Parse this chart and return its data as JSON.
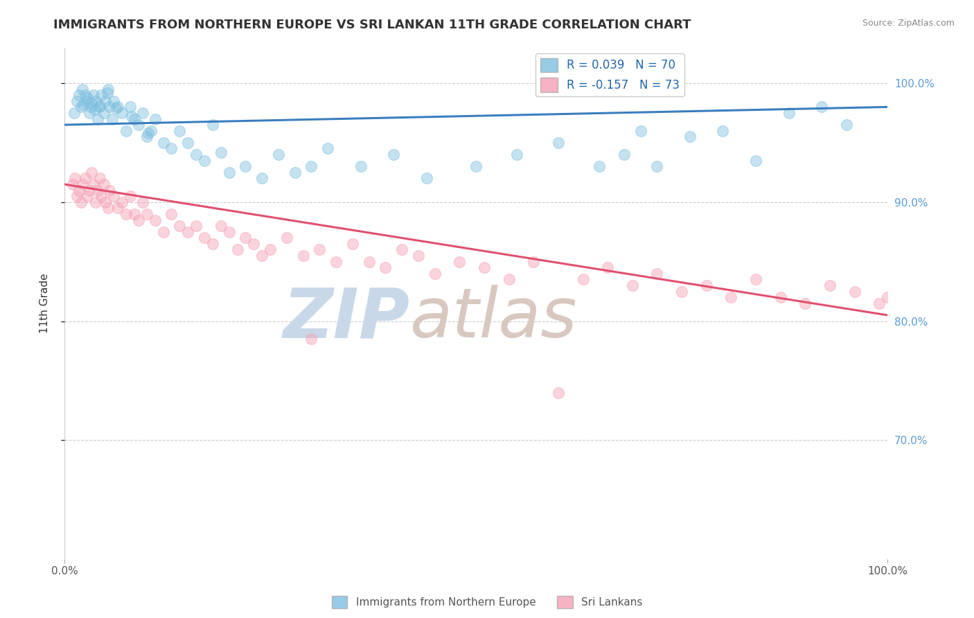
{
  "title": "IMMIGRANTS FROM NORTHERN EUROPE VS SRI LANKAN 11TH GRADE CORRELATION CHART",
  "source_text": "Source: ZipAtlas.com",
  "ylabel": "11th Grade",
  "xlim": [
    0.0,
    100.0
  ],
  "ylim": [
    60.0,
    103.0
  ],
  "legend_r1": "R = 0.039",
  "legend_n1": "N = 70",
  "legend_r2": "R = -0.157",
  "legend_n2": "N = 73",
  "blue_color": "#7fbfdf",
  "pink_color": "#f5a0b5",
  "blue_line_color": "#3a7ebf",
  "pink_line_color": "#e05070",
  "title_color": "#333333",
  "source_color": "#888888",
  "watermark_zip_color": "#c8d8e8",
  "watermark_atlas_color": "#d8c8c0",
  "ytick_vals": [
    70.0,
    80.0,
    90.0,
    100.0
  ],
  "ytick_labels": [
    "70.0%",
    "80.0%",
    "90.0%",
    "100.0%"
  ],
  "blue_scatter_x": [
    1.2,
    1.5,
    1.8,
    2.0,
    2.2,
    2.5,
    2.7,
    3.0,
    3.2,
    3.5,
    3.8,
    4.0,
    4.2,
    4.5,
    4.8,
    5.0,
    5.3,
    5.5,
    5.8,
    6.0,
    6.5,
    7.0,
    7.5,
    8.0,
    8.5,
    9.0,
    9.5,
    10.0,
    10.5,
    11.0,
    12.0,
    13.0,
    14.0,
    15.0,
    16.0,
    17.0,
    18.0,
    20.0,
    22.0,
    24.0,
    26.0,
    28.0,
    30.0,
    32.0,
    36.0,
    40.0,
    44.0,
    50.0,
    55.0,
    60.0,
    65.0,
    68.0,
    70.0,
    72.0,
    76.0,
    80.0,
    84.0,
    88.0,
    92.0,
    95.0,
    2.3,
    2.8,
    3.3,
    3.7,
    4.3,
    5.2,
    6.2,
    8.2,
    10.2,
    19.0
  ],
  "blue_scatter_y": [
    97.5,
    98.5,
    99.0,
    98.0,
    99.5,
    99.0,
    98.5,
    97.5,
    98.0,
    99.0,
    98.5,
    97.0,
    98.0,
    99.0,
    97.5,
    98.5,
    99.5,
    98.0,
    97.0,
    98.5,
    98.0,
    97.5,
    96.0,
    98.0,
    97.0,
    96.5,
    97.5,
    95.5,
    96.0,
    97.0,
    95.0,
    94.5,
    96.0,
    95.0,
    94.0,
    93.5,
    96.5,
    92.5,
    93.0,
    92.0,
    94.0,
    92.5,
    93.0,
    94.5,
    93.0,
    94.0,
    92.0,
    93.0,
    94.0,
    95.0,
    93.0,
    94.0,
    96.0,
    93.0,
    95.5,
    96.0,
    93.5,
    97.5,
    98.0,
    96.5,
    98.2,
    98.8,
    98.3,
    97.8,
    98.1,
    99.2,
    97.9,
    97.2,
    95.8,
    94.2
  ],
  "pink_scatter_x": [
    1.0,
    1.3,
    1.5,
    1.8,
    2.0,
    2.2,
    2.5,
    2.8,
    3.0,
    3.3,
    3.5,
    3.8,
    4.0,
    4.3,
    4.5,
    4.8,
    5.0,
    5.3,
    5.5,
    6.0,
    6.5,
    7.0,
    7.5,
    8.0,
    8.5,
    9.0,
    9.5,
    10.0,
    11.0,
    12.0,
    13.0,
    14.0,
    15.0,
    16.0,
    17.0,
    18.0,
    19.0,
    20.0,
    21.0,
    22.0,
    23.0,
    24.0,
    25.0,
    27.0,
    29.0,
    31.0,
    33.0,
    35.0,
    37.0,
    39.0,
    41.0,
    43.0,
    45.0,
    48.0,
    51.0,
    54.0,
    57.0,
    63.0,
    66.0,
    69.0,
    72.0,
    75.0,
    78.0,
    81.0,
    84.0,
    87.0,
    90.0,
    93.0,
    96.0,
    99.0,
    100.0,
    30.0,
    60.0
  ],
  "pink_scatter_y": [
    91.5,
    92.0,
    90.5,
    91.0,
    90.0,
    91.5,
    92.0,
    90.5,
    91.0,
    92.5,
    91.5,
    90.0,
    91.0,
    92.0,
    90.5,
    91.5,
    90.0,
    89.5,
    91.0,
    90.5,
    89.5,
    90.0,
    89.0,
    90.5,
    89.0,
    88.5,
    90.0,
    89.0,
    88.5,
    87.5,
    89.0,
    88.0,
    87.5,
    88.0,
    87.0,
    86.5,
    88.0,
    87.5,
    86.0,
    87.0,
    86.5,
    85.5,
    86.0,
    87.0,
    85.5,
    86.0,
    85.0,
    86.5,
    85.0,
    84.5,
    86.0,
    85.5,
    84.0,
    85.0,
    84.5,
    83.5,
    85.0,
    83.5,
    84.5,
    83.0,
    84.0,
    82.5,
    83.0,
    82.0,
    83.5,
    82.0,
    81.5,
    83.0,
    82.5,
    81.5,
    82.0,
    78.5,
    74.0
  ],
  "blue_trend_x": [
    0.0,
    100.0
  ],
  "blue_trend_y": [
    96.5,
    98.0
  ],
  "pink_trend_x": [
    0.0,
    100.0
  ],
  "pink_trend_y": [
    91.5,
    80.5
  ],
  "dot_size": 130,
  "dot_alpha": 0.45,
  "figsize": [
    14.06,
    8.92
  ],
  "dpi": 100
}
